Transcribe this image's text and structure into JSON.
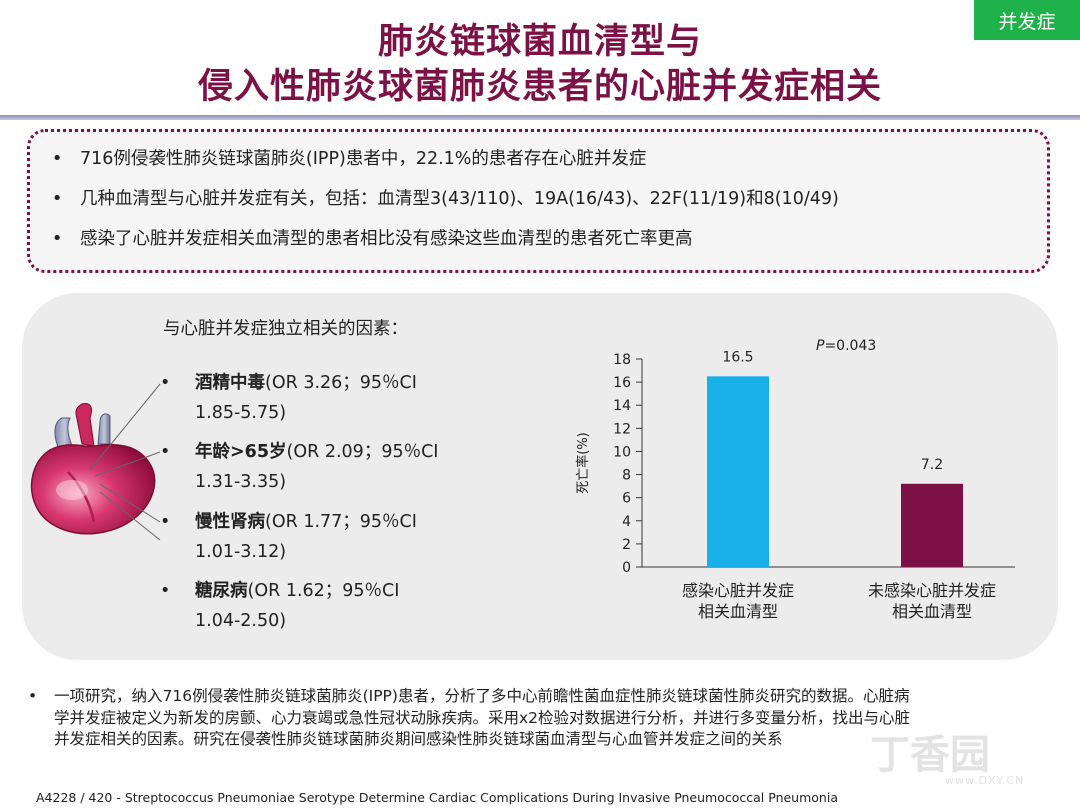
{
  "tag": "并发症",
  "title": {
    "line1": "肺炎链球菌血清型与",
    "line2": "侵入性肺炎球菌肺炎患者的心脏并发症相关"
  },
  "bullets": [
    "716例侵袭性肺炎链球菌肺炎(IPP)患者中，22.1%的患者存在心脏并发症",
    "几种血清型与心脏并发症有关，包括：血清型3(43/110)、19A(16/43)、22F(11/19)和8(10/49)",
    "感染了心脏并发症相关血清型的患者相比没有感染这些血清型的患者死亡率更高"
  ],
  "factors": {
    "heading": "与心脏并发症独立相关的因素：",
    "items": [
      {
        "name": "酒精中毒",
        "ci1": "(OR 3.26；95％CI",
        "ci2": "1.85-5.75)"
      },
      {
        "name": "年龄>65岁",
        "ci1": "(OR 2.09；95％CI",
        "ci2": "1.31-3.35)"
      },
      {
        "name": "慢性肾病",
        "ci1": "(OR 1.77；95％CI",
        "ci2": "1.01-3.12)"
      },
      {
        "name": "糖尿病",
        "ci1": "(OR 1.62；95％CI",
        "ci2": "1.04-2.50)"
      }
    ]
  },
  "chart_data": {
    "type": "bar",
    "categories": [
      [
        "感染心脏并发症",
        "相关血清型"
      ],
      [
        "未感染心脏并发症",
        "相关血清型"
      ]
    ],
    "values": [
      16.5,
      7.2
    ],
    "value_labels": [
      "16.5",
      "7.2"
    ],
    "bar_colors": [
      "#17b0e8",
      "#7b1144"
    ],
    "ylabel": "死亡率(%)",
    "ylim": [
      0,
      18
    ],
    "yticks": [
      0,
      2,
      4,
      6,
      8,
      10,
      12,
      14,
      16,
      18
    ],
    "annotation": {
      "p_symbol": "P",
      "p_text": "=0.043"
    },
    "grid": false
  },
  "footnote": [
    "一项研究，纳入716例侵袭性肺炎链球菌肺炎(IPP)患者，分析了多中心前瞻性菌血症性肺炎链球菌性肺炎研究的数据。心脏病",
    "学并发症被定义为新发的房颤、心力衰竭或急性冠状动脉疾病。采用x2检验对数据进行分析，并进行多变量分析，找出与心脏",
    "并发症相关的因素。研究在侵袭性肺炎链球菌肺炎期间感染性肺炎链球菌血清型与心血管并发症之间的关系"
  ],
  "citation": "A4228 / 420 - Streptococcus Pneumoniae Serotype Determine Cardiac Complications During Invasive Pneumococcal Pneumonia",
  "watermark": {
    "text": "丁香园",
    "url": "www.DXY.CN"
  },
  "colors": {
    "title": "#7b1144",
    "tag_bg": "#1fb14a",
    "bar_infected": "#17b0e8",
    "bar_not_infected": "#7b1144",
    "box_border": "#7b1144"
  },
  "icons": {
    "bullet": "•",
    "heart": "heart-illustration"
  }
}
